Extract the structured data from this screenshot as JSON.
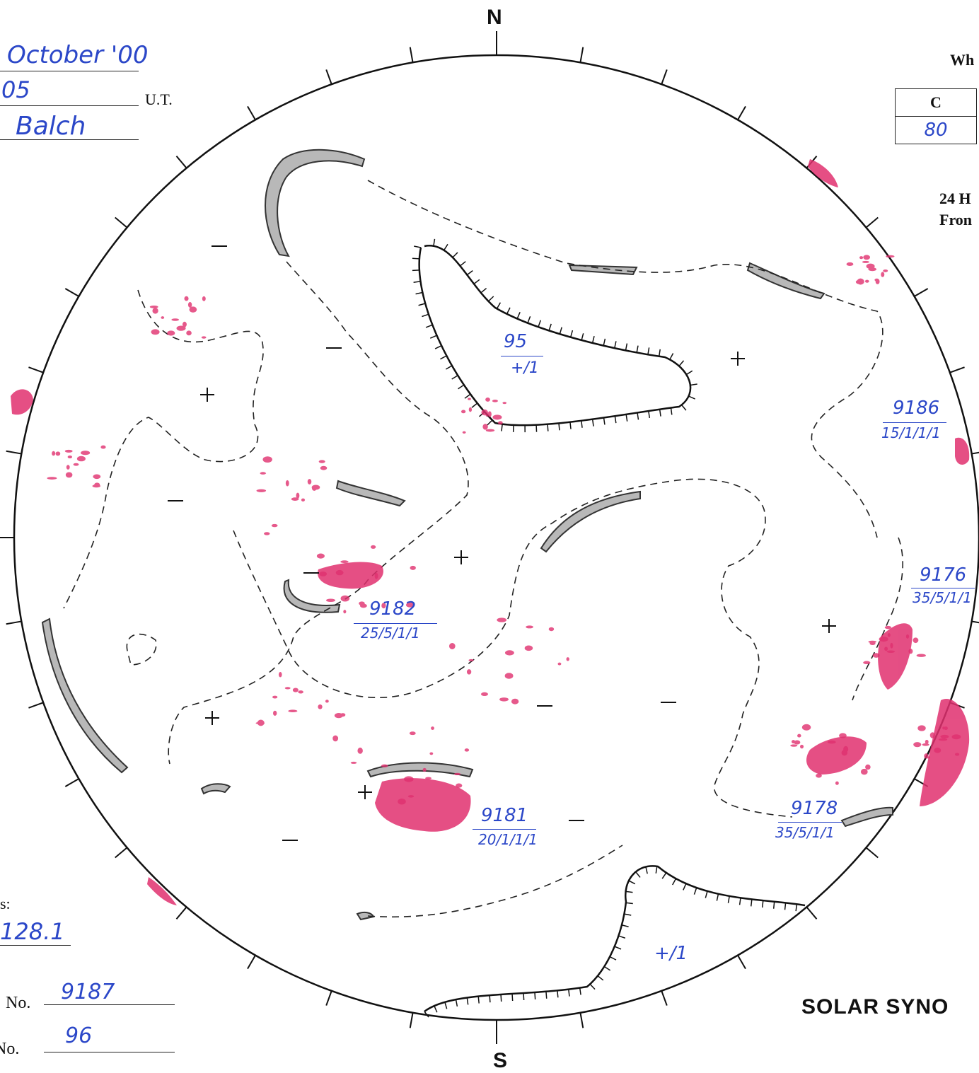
{
  "header": {
    "date_value": "October '00",
    "time_value": "05",
    "time_unit": "U.T.",
    "observer_value": "Balch"
  },
  "white_light": {
    "title_fragment": "Wh",
    "column_header": "C",
    "column_value": "80"
  },
  "note_fragment": {
    "line1": "24 H",
    "line2": "Fron"
  },
  "compass": {
    "north": "N",
    "south": "S"
  },
  "regions": [
    {
      "number": "95",
      "class": "+/1"
    },
    {
      "number": "9186",
      "class": "15/1/1/1"
    },
    {
      "number": "9176",
      "class": "35/5/1/1"
    },
    {
      "number": "9182",
      "class": "25/5/1/1"
    },
    {
      "number": "9181",
      "class": "20/1/1/1"
    },
    {
      "number": "9178",
      "class": "35/5/1/1"
    }
  ],
  "pole_label": "+/1",
  "footer": {
    "s_label": "s:",
    "s_value": "128.1",
    "no_label": "No.",
    "no_value": "9187",
    "no2_label": "No.",
    "no2_value": "96",
    "title": "SOLAR SYNO"
  },
  "colors": {
    "ink": "#222222",
    "pen": "#2b47c8",
    "plage": "#e0306f"
  }
}
